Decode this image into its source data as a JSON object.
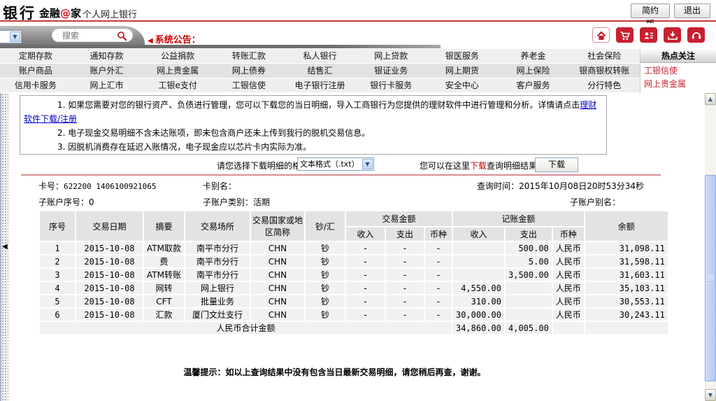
{
  "header": {
    "logo_text": "银行",
    "brand_prefix": "金融",
    "brand_at": "@",
    "brand_suffix": "家",
    "subtitle": "个人网上银行",
    "simple_version_button": "简约版",
    "logout_button": "退出"
  },
  "toolbar": {
    "search_placeholder": "搜索",
    "announcement_marker": "◀",
    "announcement_label": "系统公告：",
    "icons": [
      {
        "name": "home-icon"
      },
      {
        "name": "cart-icon"
      },
      {
        "name": "contacts-icon"
      },
      {
        "name": "inbox-download-icon"
      },
      {
        "name": "customer-service-icon"
      }
    ]
  },
  "nav": {
    "rows": [
      [
        "定期存款",
        "通知存款",
        "公益捐款",
        "转账汇款",
        "私人银行",
        "网上贷款",
        "银医服务",
        "养老金",
        "社会保险"
      ],
      [
        "账户商品",
        "账户外汇",
        "网上贵金属",
        "网上债券",
        "结售汇",
        "银证业务",
        "网上期货",
        "网上保险",
        "银商银权转账"
      ],
      [
        "信用卡服务",
        "网上汇市",
        "工银e支付",
        "工银信使",
        "电子银行注册",
        "银行卡服务",
        "安全中心",
        "客户服务",
        "分行特色"
      ]
    ]
  },
  "hot_panel": {
    "title": "热点关注",
    "items": [
      "工银信使",
      "网上贵金属"
    ]
  },
  "notices": [
    {
      "text": "1. 如果您需要对您的银行资产、负债进行管理，您可以下载您的当日明细，导入工商银行为您提供的理财软件中进行管理和分析。详情请点击",
      "link": "理财软件下载/注册"
    },
    {
      "text": "2. 电子现金交易明细不含未达账项，即未包含商户还未上传到我行的脱机交易信息。"
    },
    {
      "text": "3. 因脱机消费存在延迟入账情况，电子现金应以芯片卡内实际为准。"
    }
  ],
  "download_bar": {
    "format_label": "请您选择下载明细的格式",
    "format_value": "文本格式（.txt）",
    "hint_prefix": "您可以在这里",
    "hint_highlight": "下载",
    "hint_suffix": "查询明细结果",
    "download_button": "下载"
  },
  "account_info": {
    "card_no_label": "卡号：",
    "card_no": "622200 1406100921065",
    "card_alias_label": "卡别名：",
    "card_alias": "",
    "query_time_label": "查询时间：",
    "query_time": "2015年10月08日20时53分34秒",
    "sub_seq_label": "子账户序号：",
    "sub_seq": "0",
    "sub_type_label": "子账户类别：",
    "sub_type": "活期",
    "sub_alias_label": "子账户别名：",
    "sub_alias": ""
  },
  "table": {
    "columns": {
      "seq": "序号",
      "date": "交易日期",
      "summary": "摘要",
      "place": "交易场所",
      "region": "交易国家或地区简称",
      "cash": "钞/汇",
      "txn_group": "交易金额",
      "acct_group": "记账金额",
      "income": "收入",
      "expense": "支出",
      "currency": "币种",
      "balance": "余额"
    },
    "rows": [
      {
        "seq": "1",
        "date": "2015-10-08",
        "summary": "ATM取款",
        "place": "南平市分行",
        "region": "CHN",
        "cash": "钞",
        "txn_in": "-",
        "txn_out": "-",
        "txn_cur": "-",
        "acct_in": "",
        "acct_out": "500.00",
        "acct_cur": "人民币",
        "balance": "31,098.11"
      },
      {
        "seq": "2",
        "date": "2015-10-08",
        "summary": "费",
        "place": "南平市分行",
        "region": "CHN",
        "cash": "钞",
        "txn_in": "-",
        "txn_out": "-",
        "txn_cur": "-",
        "acct_in": "",
        "acct_out": "5.00",
        "acct_cur": "人民币",
        "balance": "31,598.11"
      },
      {
        "seq": "3",
        "date": "2015-10-08",
        "summary": "ATM转账",
        "place": "南平市分行",
        "region": "CHN",
        "cash": "钞",
        "txn_in": "-",
        "txn_out": "-",
        "txn_cur": "-",
        "acct_in": "",
        "acct_out": "3,500.00",
        "acct_cur": "人民币",
        "balance": "31,603.11"
      },
      {
        "seq": "4",
        "date": "2015-10-08",
        "summary": "网转",
        "place": "网上银行",
        "region": "CHN",
        "cash": "钞",
        "txn_in": "-",
        "txn_out": "-",
        "txn_cur": "-",
        "acct_in": "4,550.00",
        "acct_out": "",
        "acct_cur": "人民币",
        "balance": "35,103.11"
      },
      {
        "seq": "5",
        "date": "2015-10-08",
        "summary": "CFT",
        "place": "批量业务",
        "region": "CHN",
        "cash": "钞",
        "txn_in": "-",
        "txn_out": "-",
        "txn_cur": "-",
        "acct_in": "310.00",
        "acct_out": "",
        "acct_cur": "人民币",
        "balance": "30,553.11"
      },
      {
        "seq": "6",
        "date": "2015-10-08",
        "summary": "汇款",
        "place": "厦门文灶支行",
        "region": "CHN",
        "cash": "钞",
        "txn_in": "-",
        "txn_out": "-",
        "txn_cur": "-",
        "acct_in": "30,000.00",
        "acct_out": "",
        "acct_cur": "人民币",
        "balance": "30,243.11"
      }
    ],
    "total_row": {
      "label": "人民币合计金额",
      "acct_in": "34,860.00",
      "acct_out": "4,005.00"
    }
  },
  "footer_notice": "温馨提示：如以上查询结果中没有包含当日最新交易明细，请您稍后再查，谢谢。",
  "colors": {
    "accent_red": "#c8202f",
    "separator_pink": "#d98c94",
    "link_blue": "#0000cc",
    "hot_link_red": "#c5232e"
  }
}
